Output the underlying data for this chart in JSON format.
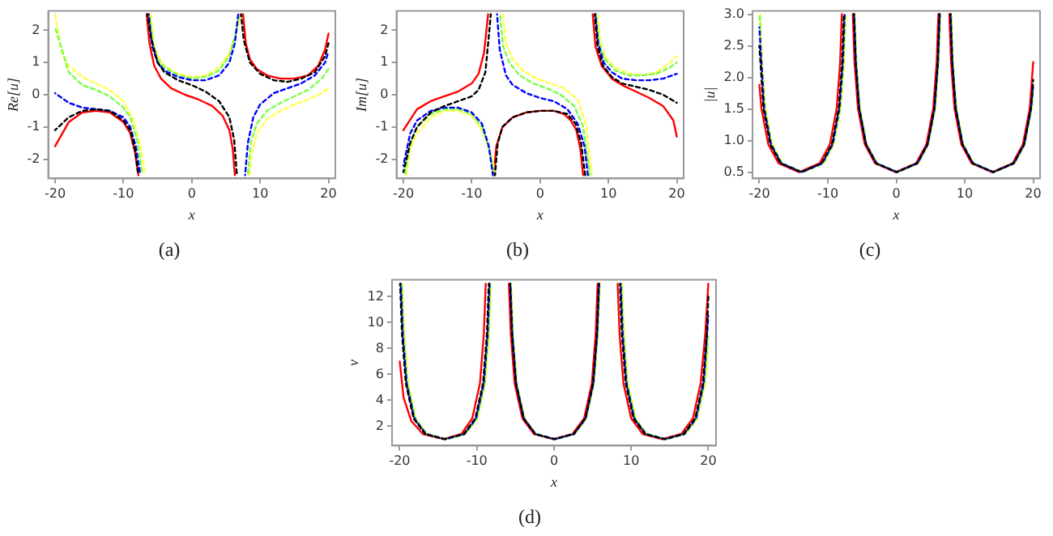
{
  "chart_data": [
    {
      "type": "line",
      "title": "(a)",
      "xlabel": "x",
      "ylabel": "Re[u]",
      "xlim": [
        -21,
        21
      ],
      "xticks": [
        -20,
        -10,
        0,
        10,
        20
      ],
      "ylim": [
        -2.6,
        2.6
      ],
      "yticks": [
        -2,
        -1,
        0,
        1,
        2
      ],
      "series": [
        {
          "color": "#ff0000",
          "line_style": "solid",
          "x": [
            -20,
            -18,
            -16,
            -14,
            -12,
            -10,
            -9,
            -8.3,
            -7.8,
            -7.2,
            -6.6,
            -6.2,
            -5.5,
            -4.5,
            -3,
            -1,
            1,
            3,
            4.5,
            5.5,
            6,
            6.3,
            6.9,
            7.5,
            7.9,
            8.5,
            9.5,
            11,
            13,
            15,
            17,
            18.5,
            19.5,
            20
          ],
          "values": [
            -1.6,
            -0.85,
            -0.55,
            -0.5,
            -0.55,
            -0.85,
            -1.2,
            -1.8,
            -2.5,
            null,
            2.5,
            1.6,
            0.9,
            0.5,
            0.2,
            0,
            -0.15,
            -0.35,
            -0.65,
            -1.1,
            -1.7,
            -2.5,
            null,
            2.5,
            1.6,
            1.1,
            0.8,
            0.6,
            0.5,
            0.5,
            0.6,
            0.9,
            1.4,
            1.9
          ]
        },
        {
          "color": "#000000",
          "line_style": "dashed",
          "x": [
            -20,
            -18,
            -16,
            -14,
            -12,
            -10,
            -9,
            -8.3,
            -7.9,
            -7.2,
            -6.5,
            -6,
            -5,
            -4,
            -2,
            0,
            2,
            4,
            5.5,
            6.2,
            6.6,
            6.9,
            7.2,
            7.6,
            8.5,
            10,
            12,
            14,
            16,
            18,
            19.5,
            20
          ],
          "values": [
            -1.1,
            -0.7,
            -0.5,
            -0.45,
            -0.5,
            -0.8,
            -1.1,
            -1.7,
            -2.4,
            null,
            2.5,
            1.8,
            1.0,
            0.7,
            0.45,
            0.3,
            0.1,
            -0.2,
            -0.7,
            -1.4,
            -2.5,
            null,
            2.5,
            1.7,
            1.0,
            0.65,
            0.45,
            0.4,
            0.5,
            0.7,
            1.2,
            1.6
          ]
        },
        {
          "color": "#0000ff",
          "line_style": "dashed",
          "x": [
            -20,
            -18,
            -16,
            -14,
            -12,
            -10,
            -9,
            -8.2,
            -7.6,
            -7,
            -6.3,
            -5.8,
            -5,
            -4,
            -2,
            0,
            2,
            4,
            5.5,
            6.3,
            6.8,
            7.3,
            7.8,
            8.2,
            9,
            10,
            12,
            14,
            16,
            18,
            19.5,
            20
          ],
          "values": [
            0.05,
            -0.25,
            -0.4,
            -0.45,
            -0.5,
            -0.7,
            -1.0,
            -1.6,
            -2.4,
            null,
            2.5,
            1.5,
            1.0,
            0.75,
            0.55,
            0.45,
            0.45,
            0.6,
            1.0,
            1.6,
            2.5,
            null,
            -2.5,
            -1.5,
            -0.7,
            -0.3,
            0.05,
            0.2,
            0.35,
            0.6,
            1.0,
            1.35
          ]
        },
        {
          "color": "#77ff44",
          "line_style": "dashed",
          "x": [
            -20,
            -18,
            -16,
            -14,
            -12,
            -10,
            -9,
            -8,
            -7.3,
            -6.8,
            -6.2,
            -5.7,
            -5,
            -4,
            -2,
            0,
            2,
            4,
            5.5,
            6.3,
            7,
            7.6,
            8.2,
            8.6,
            9.5,
            11,
            13,
            15,
            17,
            19,
            20
          ],
          "values": [
            2.1,
            0.7,
            0.3,
            0.15,
            -0.05,
            -0.4,
            -0.7,
            -1.4,
            -2.4,
            null,
            2.5,
            1.6,
            1.1,
            0.85,
            0.6,
            0.5,
            0.55,
            0.75,
            1.2,
            1.8,
            2.5,
            null,
            -2.5,
            -1.5,
            -0.9,
            -0.5,
            -0.25,
            -0.05,
            0.15,
            0.5,
            0.8
          ]
        },
        {
          "color": "#ffff44",
          "line_style": "dashed",
          "x": [
            -20,
            -19,
            -18,
            -16,
            -14,
            -12,
            -10,
            -8.5,
            -7.5,
            -6.9,
            -6.5,
            -6,
            -5.5,
            -5,
            -4,
            -2,
            0,
            2,
            4,
            5.5,
            6.5,
            7.2,
            7.8,
            8.4,
            8.8,
            9.5,
            11,
            13,
            15,
            17,
            19,
            20
          ],
          "values": [
            2.5,
            1.3,
            0.9,
            0.55,
            0.35,
            0.15,
            -0.2,
            -0.8,
            -1.6,
            -2.4,
            null,
            2.5,
            1.5,
            1.2,
            0.9,
            0.65,
            0.55,
            0.6,
            0.85,
            1.3,
            1.9,
            2.5,
            null,
            -2.5,
            -1.8,
            -1.2,
            -0.75,
            -0.5,
            -0.3,
            -0.15,
            0.05,
            0.2
          ]
        }
      ]
    },
    {
      "type": "line",
      "title": "(b)",
      "xlabel": "x",
      "ylabel": "Im[u]",
      "xlim": [
        -21,
        21
      ],
      "xticks": [
        -20,
        -10,
        0,
        10,
        20
      ],
      "ylim": [
        -2.6,
        2.6
      ],
      "yticks": [
        -2,
        -1,
        0,
        1,
        2
      ],
      "series": [
        {
          "color": "#ff0000",
          "line_style": "solid",
          "x": [
            -20,
            -18,
            -16,
            -14,
            -12,
            -10,
            -9,
            -8.2,
            -7.6,
            -7.2,
            -6.8,
            -6.4,
            -5.5,
            -4,
            -2,
            0,
            2,
            3.5,
            4.5,
            5.3,
            5.9,
            6.3,
            7,
            7.7,
            8.1,
            9,
            10.5,
            12,
            14,
            16,
            18,
            19.5,
            20
          ],
          "values": [
            -1.1,
            -0.45,
            -0.2,
            -0.05,
            0.1,
            0.35,
            0.65,
            1.3,
            2.5,
            null,
            -2.5,
            -1.6,
            -1.0,
            -0.7,
            -0.55,
            -0.5,
            -0.5,
            -0.6,
            -0.8,
            -1.1,
            -1.7,
            -2.5,
            null,
            2.5,
            1.5,
            0.9,
            0.5,
            0.3,
            0.1,
            -0.1,
            -0.35,
            -0.8,
            -1.3
          ]
        },
        {
          "color": "#000000",
          "line_style": "dashed",
          "x": [
            -20,
            -19,
            -18,
            -16,
            -14,
            -12,
            -10,
            -9,
            -8,
            -7.2,
            -6.9,
            -6.6,
            -6.2,
            -5.5,
            -4,
            -2,
            0,
            2,
            4,
            5.2,
            6,
            6.6,
            7.3,
            8,
            8.4,
            9.2,
            10.5,
            12,
            14,
            16,
            18,
            20
          ],
          "values": [
            -2.4,
            -1.5,
            -1.0,
            -0.55,
            -0.35,
            -0.2,
            -0.05,
            0.15,
            0.7,
            2.5,
            null,
            -2.5,
            -1.5,
            -1.0,
            -0.7,
            -0.55,
            -0.5,
            -0.5,
            -0.6,
            -0.9,
            -1.5,
            -2.5,
            null,
            2.5,
            1.5,
            0.9,
            0.55,
            0.35,
            0.25,
            0.15,
            0,
            -0.25
          ]
        },
        {
          "color": "#0000ff",
          "line_style": "dashed",
          "x": [
            -20,
            -19,
            -18,
            -16,
            -14,
            -12,
            -10,
            -8.5,
            -7.5,
            -6.9,
            -6.6,
            -6.3,
            -5.9,
            -5,
            -4,
            -2,
            0,
            2,
            4,
            5.5,
            6.5,
            7,
            7.6,
            8.1,
            8.5,
            9.3,
            10.5,
            12,
            14,
            16,
            18,
            20
          ],
          "values": [
            -2.2,
            -1.2,
            -0.8,
            -0.5,
            -0.4,
            -0.4,
            -0.55,
            -0.9,
            -1.6,
            -2.5,
            null,
            2.5,
            1.4,
            0.6,
            0.3,
            0.05,
            -0.1,
            -0.2,
            -0.45,
            -0.9,
            -1.6,
            -2.5,
            null,
            2.5,
            1.6,
            1.0,
            0.7,
            0.5,
            0.45,
            0.45,
            0.5,
            0.65
          ]
        },
        {
          "color": "#77ff44",
          "line_style": "dashed",
          "x": [
            -19.8,
            -19,
            -18,
            -16,
            -14,
            -12,
            -10,
            -8.5,
            -7.4,
            -6.7,
            -6.3,
            -5.9,
            -5.4,
            -4.5,
            -3,
            -1,
            1,
            3,
            5,
            6.3,
            7.3,
            7.8,
            8.2,
            8.6,
            9.5,
            11,
            13,
            15,
            17,
            19,
            20
          ],
          "values": [
            -2.5,
            -1.5,
            -1.0,
            -0.6,
            -0.45,
            -0.45,
            -0.6,
            -1.0,
            -1.7,
            -2.5,
            null,
            2.5,
            1.5,
            1.0,
            0.6,
            0.35,
            0.2,
            0,
            -0.35,
            -1.0,
            -2.5,
            null,
            2.5,
            1.6,
            1.1,
            0.75,
            0.6,
            0.6,
            0.65,
            0.85,
            1.0
          ]
        },
        {
          "color": "#ffff44",
          "line_style": "dashed",
          "x": [
            -19.6,
            -19,
            -18,
            -16,
            -14,
            -12,
            -10,
            -8.5,
            -7.2,
            -6.5,
            -6,
            -5.4,
            -5,
            -4,
            -2.5,
            -0.5,
            1.5,
            3.5,
            5.5,
            6.7,
            7.6,
            8,
            8.4,
            8.8,
            9.5,
            11,
            13,
            15,
            17,
            19,
            20
          ],
          "values": [
            -2.5,
            -1.7,
            -1.2,
            -0.7,
            -0.5,
            -0.5,
            -0.65,
            -1.1,
            -1.8,
            -2.5,
            null,
            2.5,
            1.6,
            1.1,
            0.75,
            0.5,
            0.35,
            0.2,
            -0.15,
            -0.9,
            -2.5,
            null,
            2.5,
            1.7,
            1.2,
            0.85,
            0.65,
            0.6,
            0.7,
            1.0,
            1.2
          ]
        }
      ]
    },
    {
      "type": "line",
      "title": "(c)",
      "xlabel": "x",
      "ylabel": "|u|",
      "xlim": [
        -21,
        21
      ],
      "xticks": [
        -20,
        -10,
        0,
        10,
        20
      ],
      "ylim": [
        0.4,
        3.05
      ],
      "yticks": [
        0.5,
        {
          "value": 1,
          "label": "1.0"
        },
        1.5,
        {
          "value": 2,
          "label": "2.0"
        },
        2.5,
        {
          "value": 3,
          "label": "3.0"
        }
      ],
      "series": [
        {
          "color": "#ff0000",
          "line_style": "solid",
          "x": [
            -20,
            -19.7,
            -18.7,
            -17.2,
            -14.2,
            -11.2,
            -9.7,
            -8.7,
            -8.2,
            -7.95,
            -7.2,
            -6.35,
            -6.1,
            -5.6,
            -4.6,
            -3.1,
            -0.1,
            2.9,
            4.4,
            5.4,
            5.9,
            6.15,
            6.9,
            7.75,
            8,
            8.5,
            9.5,
            11,
            14,
            17,
            18.5,
            19.5,
            20
          ],
          "values": [
            1.88,
            1.51,
            0.94,
            0.64,
            0.5,
            0.64,
            0.94,
            1.51,
            2.24,
            3,
            null,
            3,
            2.24,
            1.51,
            0.94,
            0.64,
            0.5,
            0.64,
            0.94,
            1.51,
            2.24,
            3,
            null,
            3,
            2.24,
            1.51,
            0.94,
            0.64,
            0.5,
            0.64,
            0.94,
            1.51,
            2.24
          ]
        },
        {
          "color": "#000000",
          "line_style": "dashed",
          "x": [
            -20,
            -19.4,
            -18.4,
            -16.9,
            -13.9,
            -10.9,
            -9.4,
            -8.4,
            -7.9,
            -7.65,
            -7,
            -6.2,
            -5.95,
            -5.45,
            -4.45,
            -2.95,
            0.05,
            3.05,
            4.55,
            5.55,
            6.05,
            6.3,
            7.1,
            7.9,
            8.15,
            8.65,
            9.65,
            11.15,
            14.15,
            17.15,
            18.65,
            19.65,
            20
          ],
          "values": [
            2.5,
            1.51,
            0.94,
            0.64,
            0.5,
            0.64,
            0.94,
            1.51,
            2.24,
            3,
            null,
            3,
            2.24,
            1.51,
            0.94,
            0.64,
            0.5,
            0.64,
            0.94,
            1.51,
            2.24,
            3,
            null,
            3,
            2.24,
            1.51,
            0.94,
            0.64,
            0.5,
            0.64,
            0.94,
            1.51,
            1.96
          ]
        },
        {
          "color": "#0000ff",
          "line_style": "dashed",
          "x": [
            -20,
            -19.3,
            -18.3,
            -16.8,
            -13.8,
            -10.8,
            -9.3,
            -8.3,
            -7.8,
            -7.55,
            -6.9,
            -6.15,
            -5.9,
            -5.4,
            -4.4,
            -2.9,
            0.1,
            3.1,
            4.6,
            5.6,
            6.1,
            6.35,
            7.1,
            7.95,
            8.2,
            8.7,
            9.7,
            11.2,
            14.2,
            17.2,
            18.7,
            19.7,
            20
          ],
          "values": [
            2.79,
            1.51,
            0.94,
            0.64,
            0.5,
            0.64,
            0.94,
            1.51,
            2.24,
            3,
            null,
            3,
            2.24,
            1.51,
            0.94,
            0.64,
            0.5,
            0.64,
            0.94,
            1.51,
            2.24,
            3,
            null,
            3,
            2.24,
            1.51,
            0.94,
            0.64,
            0.5,
            0.64,
            0.94,
            1.51,
            1.88
          ]
        },
        {
          "color": "#77ff44",
          "line_style": "dashed",
          "x": [
            -19.95,
            -19.7,
            -19.2,
            -18.2,
            -16.7,
            -13.7,
            -10.7,
            -9.2,
            -8.2,
            -7.7,
            -7.45,
            -6.8,
            -6.1,
            -5.85,
            -5.35,
            -4.35,
            -2.85,
            0.15,
            3.15,
            4.65,
            5.65,
            6.15,
            6.4,
            7.2,
            8,
            8.25,
            8.75,
            9.75,
            11.25,
            14.25,
            17.25,
            18.75,
            19.75,
            20
          ],
          "values": [
            3,
            2.24,
            1.51,
            0.94,
            0.64,
            0.5,
            0.64,
            0.94,
            1.51,
            2.24,
            3,
            null,
            3,
            2.24,
            1.51,
            0.94,
            0.64,
            0.5,
            0.64,
            0.94,
            1.51,
            2.24,
            3,
            null,
            3,
            2.24,
            1.51,
            0.94,
            0.64,
            0.5,
            0.64,
            0.94,
            1.51,
            1.8
          ]
        },
        {
          "color": "#ffff44",
          "line_style": "dashed",
          "x": [
            -19.85,
            -19.6,
            -19.1,
            -18.1,
            -16.6,
            -13.6,
            -10.6,
            -9.1,
            -8.1,
            -7.6,
            -7.35,
            -6.7,
            -6.05,
            -5.8,
            -5.3,
            -4.3,
            -2.8,
            0.2,
            3.2,
            4.7,
            5.7,
            6.2,
            6.45,
            7.3,
            8.05,
            8.3,
            8.8,
            9.8,
            11.3,
            14.3,
            17.3,
            18.8,
            19.8,
            20
          ],
          "values": [
            3,
            2.24,
            1.51,
            0.94,
            0.64,
            0.5,
            0.64,
            0.94,
            1.51,
            2.24,
            3,
            null,
            3,
            2.24,
            1.51,
            0.94,
            0.64,
            0.5,
            0.64,
            0.94,
            1.51,
            2.24,
            3,
            null,
            3,
            2.24,
            1.51,
            0.94,
            0.64,
            0.5,
            0.64,
            0.94,
            1.51,
            1.74
          ]
        }
      ]
    },
    {
      "type": "line",
      "title": "(d)",
      "xlabel": "x",
      "ylabel": "v",
      "xlim": [
        -21,
        21
      ],
      "xticks": [
        -20,
        -10,
        0,
        10,
        20
      ],
      "ylim": [
        0.5,
        13.3
      ],
      "yticks": [
        2,
        4,
        6,
        8,
        10,
        12
      ],
      "series": [
        {
          "color": "#ff0000",
          "line_style": "solid",
          "x": [
            -20,
            -19.5,
            -18.5,
            -17,
            -14.3,
            -12,
            -10.6,
            -9.6,
            -9.1,
            -8.85,
            -7.5,
            -5.85,
            -5.6,
            -5.1,
            -4.1,
            -2.6,
            -0.1,
            2.4,
            3.9,
            4.9,
            5.4,
            5.65,
            6.9,
            8.25,
            8.5,
            9,
            10,
            11.5,
            14,
            16.5,
            18,
            19,
            19.6,
            20
          ],
          "values": [
            7,
            4.2,
            2.4,
            1.4,
            1,
            1.4,
            2.6,
            5.3,
            9.1,
            13,
            null,
            13,
            9.1,
            5.3,
            2.6,
            1.4,
            1,
            1.4,
            2.6,
            5.3,
            9.1,
            13,
            null,
            13,
            9.1,
            5.3,
            2.6,
            1.4,
            1,
            1.4,
            2.6,
            5.3,
            9.1,
            13
          ]
        },
        {
          "color": "#000000",
          "line_style": "dashed",
          "x": [
            -19.95,
            -19.7,
            -19.2,
            -18.2,
            -16.7,
            -14.2,
            -11.7,
            -10.2,
            -9.2,
            -8.7,
            -8.45,
            -7.4,
            -5.7,
            -5.45,
            -4.95,
            -3.95,
            -2.45,
            0.05,
            2.55,
            4.05,
            5.05,
            5.55,
            5.8,
            7,
            8.55,
            8.8,
            9.3,
            10.3,
            11.8,
            14.3,
            16.8,
            18.3,
            19.3,
            19.8,
            20
          ],
          "values": [
            13,
            9.1,
            5.3,
            2.6,
            1.4,
            1,
            1.4,
            2.6,
            5.3,
            9.1,
            13,
            null,
            13,
            9.1,
            5.3,
            2.6,
            1.4,
            1,
            1.4,
            2.6,
            5.3,
            9.1,
            13,
            null,
            13,
            9.1,
            5.3,
            2.6,
            1.4,
            1,
            1.4,
            2.6,
            5.3,
            9.1,
            12
          ]
        },
        {
          "color": "#0000ff",
          "line_style": "dashed",
          "x": [
            -19.85,
            -19.6,
            -19.1,
            -18.1,
            -16.6,
            -14.1,
            -11.6,
            -10.1,
            -9.1,
            -8.6,
            -8.35,
            -7.3,
            -5.65,
            -5.4,
            -4.9,
            -3.9,
            -2.4,
            0.1,
            2.6,
            4.1,
            5.1,
            5.6,
            5.85,
            7.1,
            8.65,
            8.9,
            9.4,
            10.4,
            11.9,
            14.4,
            16.9,
            18.4,
            19.4,
            20
          ],
          "values": [
            13,
            9.1,
            5.3,
            2.6,
            1.4,
            1,
            1.4,
            2.6,
            5.3,
            9.1,
            13,
            null,
            13,
            9.1,
            5.3,
            2.6,
            1.4,
            1,
            1.4,
            2.6,
            5.3,
            9.1,
            13,
            null,
            13,
            9.1,
            5.3,
            2.6,
            1.4,
            1,
            1.4,
            2.6,
            5.3,
            10.5
          ]
        },
        {
          "color": "#77ff44",
          "line_style": "dashed",
          "x": [
            -19.75,
            -19.5,
            -19,
            -18,
            -16.5,
            -14,
            -11.5,
            -10,
            -9,
            -8.5,
            -8.25,
            -7.2,
            -5.6,
            -5.35,
            -4.85,
            -3.85,
            -2.35,
            0.15,
            2.65,
            4.15,
            5.15,
            5.65,
            5.9,
            7.2,
            8.75,
            9,
            9.5,
            10.5,
            12,
            14.5,
            17,
            18.5,
            19.5,
            20
          ],
          "values": [
            13,
            9.1,
            5.3,
            2.6,
            1.4,
            1,
            1.4,
            2.6,
            5.3,
            9.1,
            13,
            null,
            13,
            9.1,
            5.3,
            2.6,
            1.4,
            1,
            1.4,
            2.6,
            5.3,
            9.1,
            13,
            null,
            13,
            9.1,
            5.3,
            2.6,
            1.4,
            1,
            1.4,
            2.6,
            5.3,
            9.1
          ]
        },
        {
          "color": "#ffff44",
          "line_style": "dashed",
          "x": [
            -19.65,
            -19.4,
            -18.9,
            -17.9,
            -16.4,
            -13.9,
            -11.4,
            -9.9,
            -8.9,
            -8.4,
            -8.15,
            -7.1,
            -5.55,
            -5.3,
            -4.8,
            -3.8,
            -2.3,
            0.2,
            2.7,
            4.2,
            5.2,
            5.7,
            5.95,
            7.3,
            8.85,
            9.1,
            9.6,
            10.6,
            12.1,
            14.6,
            17.1,
            18.6,
            19.6,
            20
          ],
          "values": [
            13,
            9.1,
            5.3,
            2.6,
            1.4,
            1,
            1.4,
            2.6,
            5.3,
            9.1,
            13,
            null,
            13,
            9.1,
            5.3,
            2.6,
            1.4,
            1,
            1.4,
            2.6,
            5.3,
            9.1,
            13,
            null,
            13,
            9.1,
            5.3,
            2.6,
            1.4,
            1,
            1.4,
            2.6,
            5.3,
            8.1
          ]
        }
      ]
    }
  ]
}
